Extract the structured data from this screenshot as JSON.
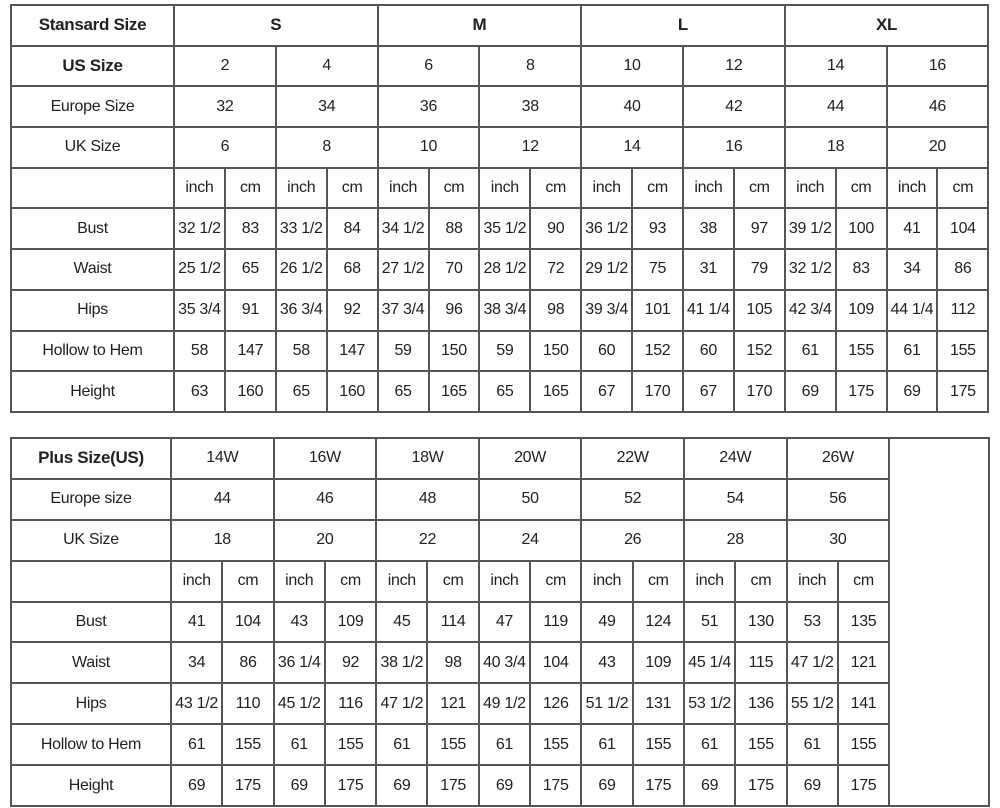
{
  "standard": {
    "title": "Stansard Size",
    "groups": [
      "S",
      "M",
      "L",
      "XL"
    ],
    "rows": [
      {
        "label": "US Size",
        "values": [
          "2",
          "4",
          "6",
          "8",
          "10",
          "12",
          "14",
          "16"
        ]
      },
      {
        "label": "Europe Size",
        "values": [
          "32",
          "34",
          "36",
          "38",
          "40",
          "42",
          "44",
          "46"
        ]
      },
      {
        "label": "UK Size",
        "values": [
          "6",
          "8",
          "10",
          "12",
          "14",
          "16",
          "18",
          "20"
        ]
      }
    ],
    "units": [
      "inch",
      "cm"
    ],
    "measurements": [
      {
        "label": "Bust",
        "values": [
          "32 1/2",
          "83",
          "33 1/2",
          "84",
          "34 1/2",
          "88",
          "35 1/2",
          "90",
          "36 1/2",
          "93",
          "38",
          "97",
          "39 1/2",
          "100",
          "41",
          "104"
        ]
      },
      {
        "label": "Waist",
        "values": [
          "25 1/2",
          "65",
          "26 1/2",
          "68",
          "27 1/2",
          "70",
          "28 1/2",
          "72",
          "29 1/2",
          "75",
          "31",
          "79",
          "32 1/2",
          "83",
          "34",
          "86"
        ]
      },
      {
        "label": "Hips",
        "values": [
          "35 3/4",
          "91",
          "36 3/4",
          "92",
          "37 3/4",
          "96",
          "38 3/4",
          "98",
          "39 3/4",
          "101",
          "41 1/4",
          "105",
          "42 3/4",
          "109",
          "44 1/4",
          "112"
        ]
      },
      {
        "label": "Hollow to Hem",
        "values": [
          "58",
          "147",
          "58",
          "147",
          "59",
          "150",
          "59",
          "150",
          "60",
          "152",
          "60",
          "152",
          "61",
          "155",
          "61",
          "155"
        ]
      },
      {
        "label": "Height",
        "values": [
          "63",
          "160",
          "65",
          "160",
          "65",
          "165",
          "65",
          "165",
          "67",
          "170",
          "67",
          "170",
          "69",
          "175",
          "69",
          "175"
        ]
      }
    ]
  },
  "plus": {
    "title": "Plus Size(US)",
    "sizes": [
      "14W",
      "16W",
      "18W",
      "20W",
      "22W",
      "24W",
      "26W"
    ],
    "rows": [
      {
        "label": "Europe size",
        "values": [
          "44",
          "46",
          "48",
          "50",
          "52",
          "54",
          "56"
        ]
      },
      {
        "label": "UK Size",
        "values": [
          "18",
          "20",
          "22",
          "24",
          "26",
          "28",
          "30"
        ]
      }
    ],
    "units": [
      "inch",
      "cm"
    ],
    "measurements": [
      {
        "label": "Bust",
        "values": [
          "41",
          "104",
          "43",
          "109",
          "45",
          "114",
          "47",
          "119",
          "49",
          "124",
          "51",
          "130",
          "53",
          "135"
        ]
      },
      {
        "label": "Waist",
        "values": [
          "34",
          "86",
          "36 1/4",
          "92",
          "38 1/2",
          "98",
          "40 3/4",
          "104",
          "43",
          "109",
          "45 1/4",
          "115",
          "47 1/2",
          "121"
        ]
      },
      {
        "label": "Hips",
        "values": [
          "43 1/2",
          "110",
          "45 1/2",
          "116",
          "47 1/2",
          "121",
          "49 1/2",
          "126",
          "51 1/2",
          "131",
          "53 1/2",
          "136",
          "55 1/2",
          "141"
        ]
      },
      {
        "label": "Hollow to Hem",
        "values": [
          "61",
          "155",
          "61",
          "155",
          "61",
          "155",
          "61",
          "155",
          "61",
          "155",
          "61",
          "155",
          "61",
          "155"
        ]
      },
      {
        "label": "Height",
        "values": [
          "69",
          "175",
          "69",
          "175",
          "69",
          "175",
          "69",
          "175",
          "69",
          "175",
          "69",
          "175",
          "69",
          "175"
        ]
      }
    ]
  }
}
